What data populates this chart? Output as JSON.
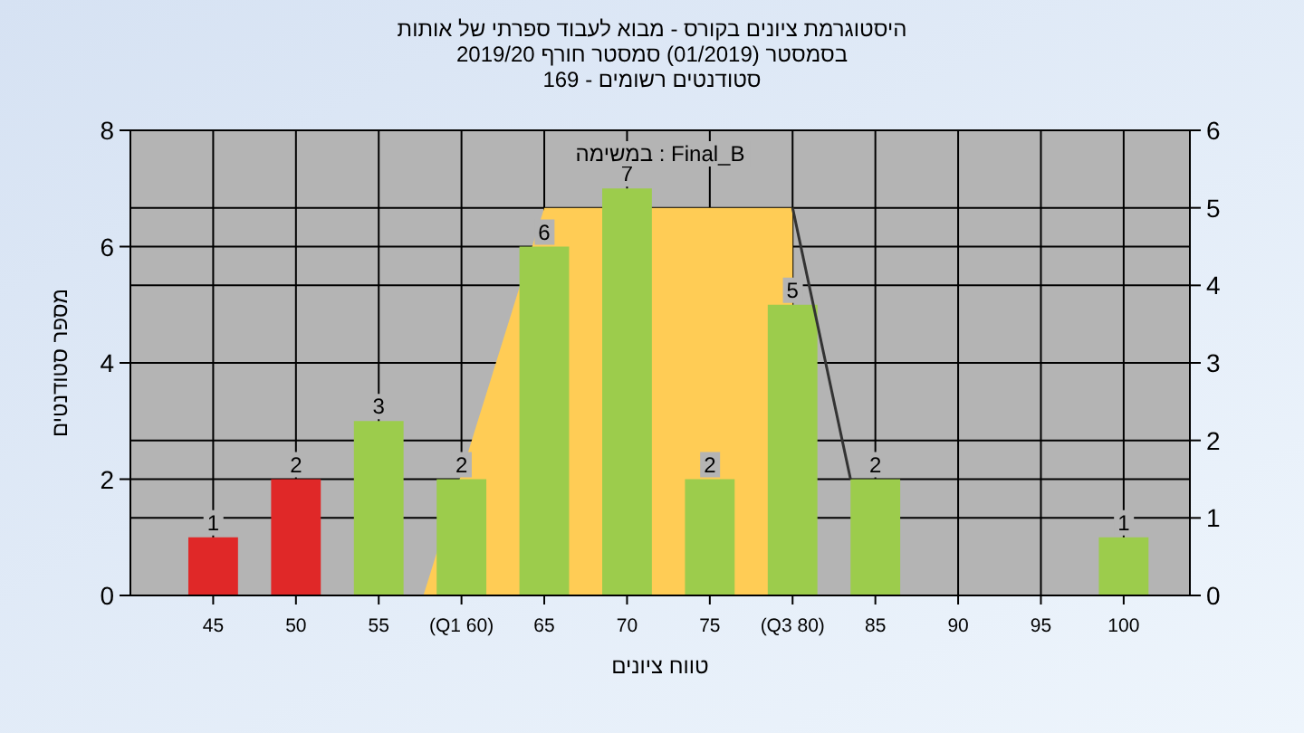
{
  "chart_data": {
    "type": "bar",
    "title": "היסטוגרמת ציונים בקורס - מבוא לעבוד ספרתי של אותות",
    "subtitle": "בסמסטר  (01/2019)  סמסטר חורף 2019/20\nסטודנטים רשומים - 169",
    "xlabel": "טווח ציונים",
    "ylabel": "מספר סטודנטים",
    "annotations": [
      "Final_B : במשימה"
    ],
    "x": [
      45,
      50,
      55,
      60,
      65,
      70,
      75,
      80,
      85,
      90,
      95,
      100
    ],
    "series": [
      {
        "colors": [
          "#e02828",
          "#e02828",
          "#9ccc4c",
          "#9ccc4c",
          "#9ccc4c",
          "#9ccc4c",
          "#9ccc4c",
          "#9ccc4c",
          "#9ccc4c",
          "#9ccc4c",
          "#9ccc4c",
          "#9ccc4c"
        ],
        "values": [
          1,
          2,
          3,
          2,
          6,
          7,
          2,
          5,
          2,
          0,
          0,
          1
        ],
        "value_labels": [
          "1",
          "2",
          "3",
          "2",
          "6",
          "7",
          "2",
          "5",
          "2",
          null,
          null,
          "1"
        ]
      },
      {
        "type": "area",
        "axis": "y2",
        "color": "#ffcc55",
        "x": [
          57.7,
          65,
          80,
          80
        ],
        "values": [
          0,
          5,
          5,
          0
        ]
      },
      {
        "type": "line",
        "axis": "y2",
        "color": "#333333",
        "x": [
          80,
          83.5
        ],
        "values": [
          5,
          1.5
        ]
      }
    ],
    "xlim": [
      40,
      104
    ],
    "xticks": [
      45,
      50,
      55,
      {
        "value": 60,
        "label": "(Q1 60)"
      },
      65,
      70,
      75,
      {
        "value": 80,
        "label": "(Q3 80)"
      },
      85,
      90,
      95,
      100
    ],
    "ylim": [
      0,
      8
    ],
    "yticks": [
      0,
      2,
      4,
      6,
      8
    ],
    "y2lim": [
      0,
      6
    ],
    "y2ticks": [
      0,
      1,
      2,
      3,
      4,
      5,
      6
    ],
    "grid": true
  }
}
